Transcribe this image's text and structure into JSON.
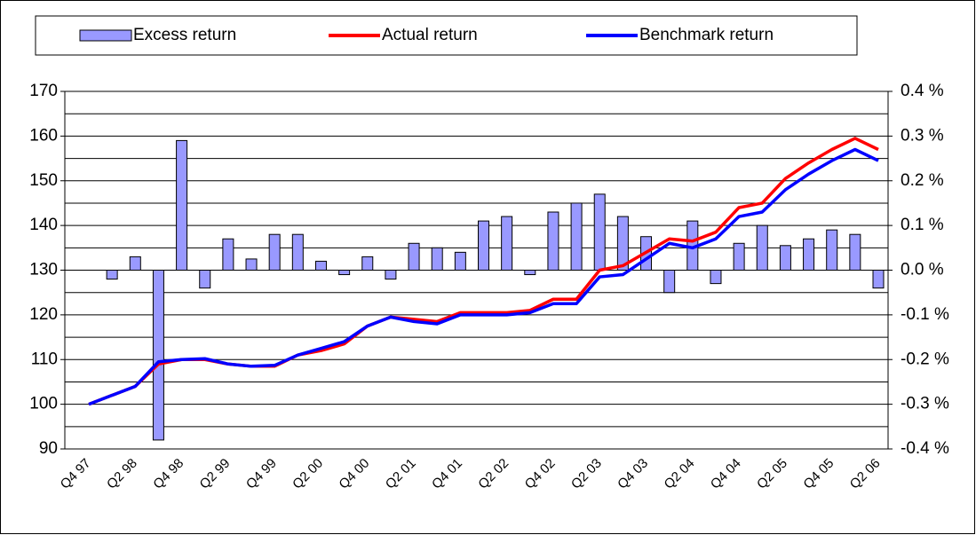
{
  "chart_data": {
    "type": "combo",
    "categories": [
      "Q4 97",
      null,
      "Q2 98",
      null,
      "Q4 98",
      null,
      "Q2 99",
      null,
      "Q4 99",
      null,
      "Q2 00",
      null,
      "Q4 00",
      null,
      "Q2 01",
      null,
      "Q4 01",
      null,
      "Q2 02",
      null,
      "Q4 02",
      null,
      "Q2 03",
      null,
      "Q4 03",
      null,
      "Q2 04",
      null,
      "Q4 04",
      null,
      "Q2 05",
      null,
      "Q4 05",
      null,
      "Q2 06"
    ],
    "series": [
      {
        "name": "Excess return",
        "type": "bar",
        "axis": "y2",
        "color": "#9999ff",
        "values": [
          null,
          -0.02,
          0.03,
          -0.38,
          0.29,
          -0.04,
          0.07,
          0.025,
          0.08,
          0.08,
          0.02,
          -0.01,
          0.03,
          -0.02,
          0.06,
          0.05,
          0.04,
          0.11,
          0.12,
          -0.01,
          0.13,
          0.15,
          0.17,
          0.12,
          0.075,
          -0.05,
          0.11,
          -0.03,
          0.06,
          0.1,
          0.055,
          0.07,
          0.09,
          0.08,
          -0.04
        ]
      },
      {
        "name": "Actual return",
        "type": "line",
        "color": "#ff0000",
        "values": [
          100,
          102,
          104,
          109,
          110,
          110,
          109,
          108.5,
          108.5,
          111,
          112,
          113.5,
          117.5,
          119.5,
          119,
          118.5,
          120.5,
          120.5,
          120.5,
          121,
          123.5,
          123.5,
          130,
          131,
          134,
          137,
          136.5,
          138.5,
          144,
          145,
          150.5,
          154,
          157,
          159.5,
          157
        ]
      },
      {
        "name": "Benchmark return",
        "type": "line",
        "color": "#0000ff",
        "values": [
          100,
          102,
          104,
          109.5,
          110,
          110.2,
          109,
          108.5,
          108.7,
          111,
          112.5,
          114,
          117.5,
          119.5,
          118.5,
          118,
          120,
          120,
          120,
          120.5,
          122.5,
          122.5,
          128.5,
          129,
          132.5,
          136,
          135,
          137,
          142,
          143,
          148,
          151.5,
          154.5,
          157,
          154.5
        ]
      }
    ],
    "ylim": [
      90,
      170
    ],
    "yticks": [
      90,
      100,
      110,
      120,
      130,
      140,
      150,
      160,
      170
    ],
    "minor_grid": [
      95,
      105,
      115,
      125,
      135,
      145,
      155,
      165
    ],
    "y2lim": [
      -0.4,
      0.4
    ],
    "y2ticks": [
      {
        "value": -0.4,
        "label": "-0.4 %"
      },
      {
        "value": -0.3,
        "label": "-0.3 %"
      },
      {
        "value": -0.2,
        "label": "-0.2 %"
      },
      {
        "value": -0.1,
        "label": "-0.1 %"
      },
      {
        "value": 0.0,
        "label": "0.0 %"
      },
      {
        "value": 0.1,
        "label": "0.1 %"
      },
      {
        "value": 0.2,
        "label": "0.2 %"
      },
      {
        "value": 0.3,
        "label": "0.3 %"
      },
      {
        "value": 0.4,
        "label": "0.4 %"
      }
    ],
    "grid": true,
    "legend": "top"
  }
}
